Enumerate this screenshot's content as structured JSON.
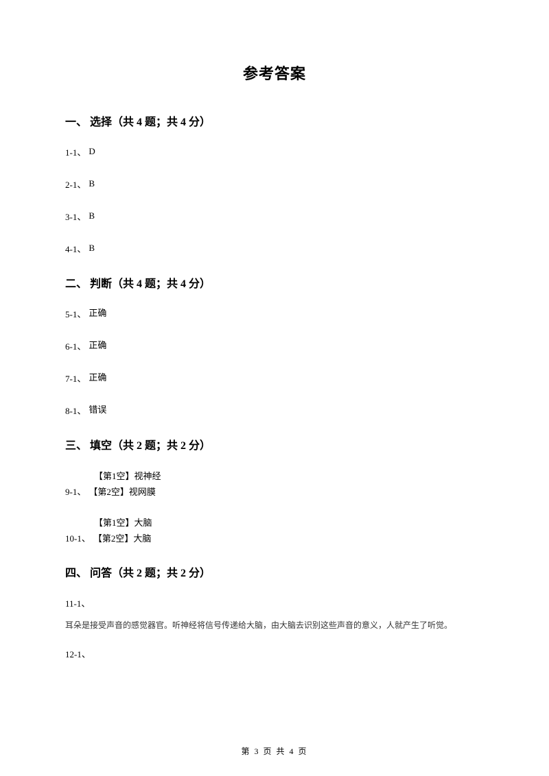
{
  "title": "参考答案",
  "sections": {
    "s1": {
      "header": "一、 选择（共 4 题；共 4 分）"
    },
    "s2": {
      "header": "二、 判断（共 4 题；共 4 分）"
    },
    "s3": {
      "header": "三、 填空（共 2 题；共 2 分）"
    },
    "s4": {
      "header": "四、 问答（共 2 题；共 2 分）"
    }
  },
  "choice": {
    "a1": {
      "label": "1-1、",
      "value": "D"
    },
    "a2": {
      "label": "2-1、",
      "value": "B"
    },
    "a3": {
      "label": "3-1、",
      "value": "B"
    },
    "a4": {
      "label": "4-1、",
      "value": "B"
    }
  },
  "judge": {
    "a5": {
      "label": "5-1、",
      "value": "正确"
    },
    "a6": {
      "label": "6-1、",
      "value": "正确"
    },
    "a7": {
      "label": "7-1、",
      "value": "正确"
    },
    "a8": {
      "label": "8-1、",
      "value": "错误"
    }
  },
  "fill": {
    "q9": {
      "label": "9-1、",
      "blank1": "【第1空】视神经",
      "blank2": "【第2空】视网膜"
    },
    "q10": {
      "label": "10-1、",
      "blank1": "【第1空】大脑",
      "blank2": "【第2空】大脑"
    }
  },
  "qa": {
    "q11": {
      "label": "11-1、",
      "text": "耳朵是接受声音的感觉器官。听神经将信号传递给大脑，由大脑去识别这些声音的意义，人就产生了听觉。"
    },
    "q12": {
      "label": "12-1、"
    }
  },
  "footer": "第 3 页 共 4 页"
}
